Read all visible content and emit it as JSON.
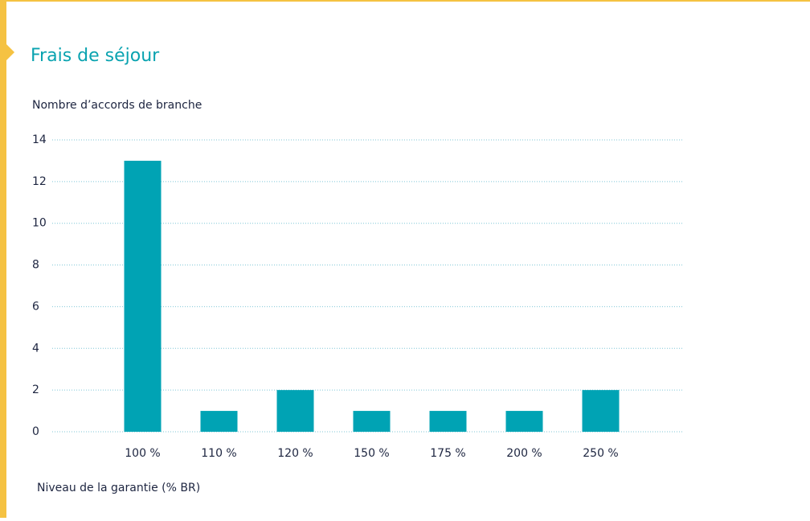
{
  "chart_data": {
    "type": "bar",
    "title": "Frais de séjour",
    "y_label": "Nombre d’accords de branche",
    "x_label": "Niveau de la garantie (% BR)",
    "categories": [
      "100 %",
      "110 %",
      "120 %",
      "150 %",
      "175 %",
      "200 %",
      "250 %"
    ],
    "values": [
      13,
      1,
      2,
      1,
      1,
      1,
      2
    ],
    "color": "#00a3b4",
    "ylim": [
      0,
      14
    ],
    "yticks": [
      0,
      2,
      4,
      6,
      8,
      10,
      12,
      14
    ],
    "grid": true
  }
}
